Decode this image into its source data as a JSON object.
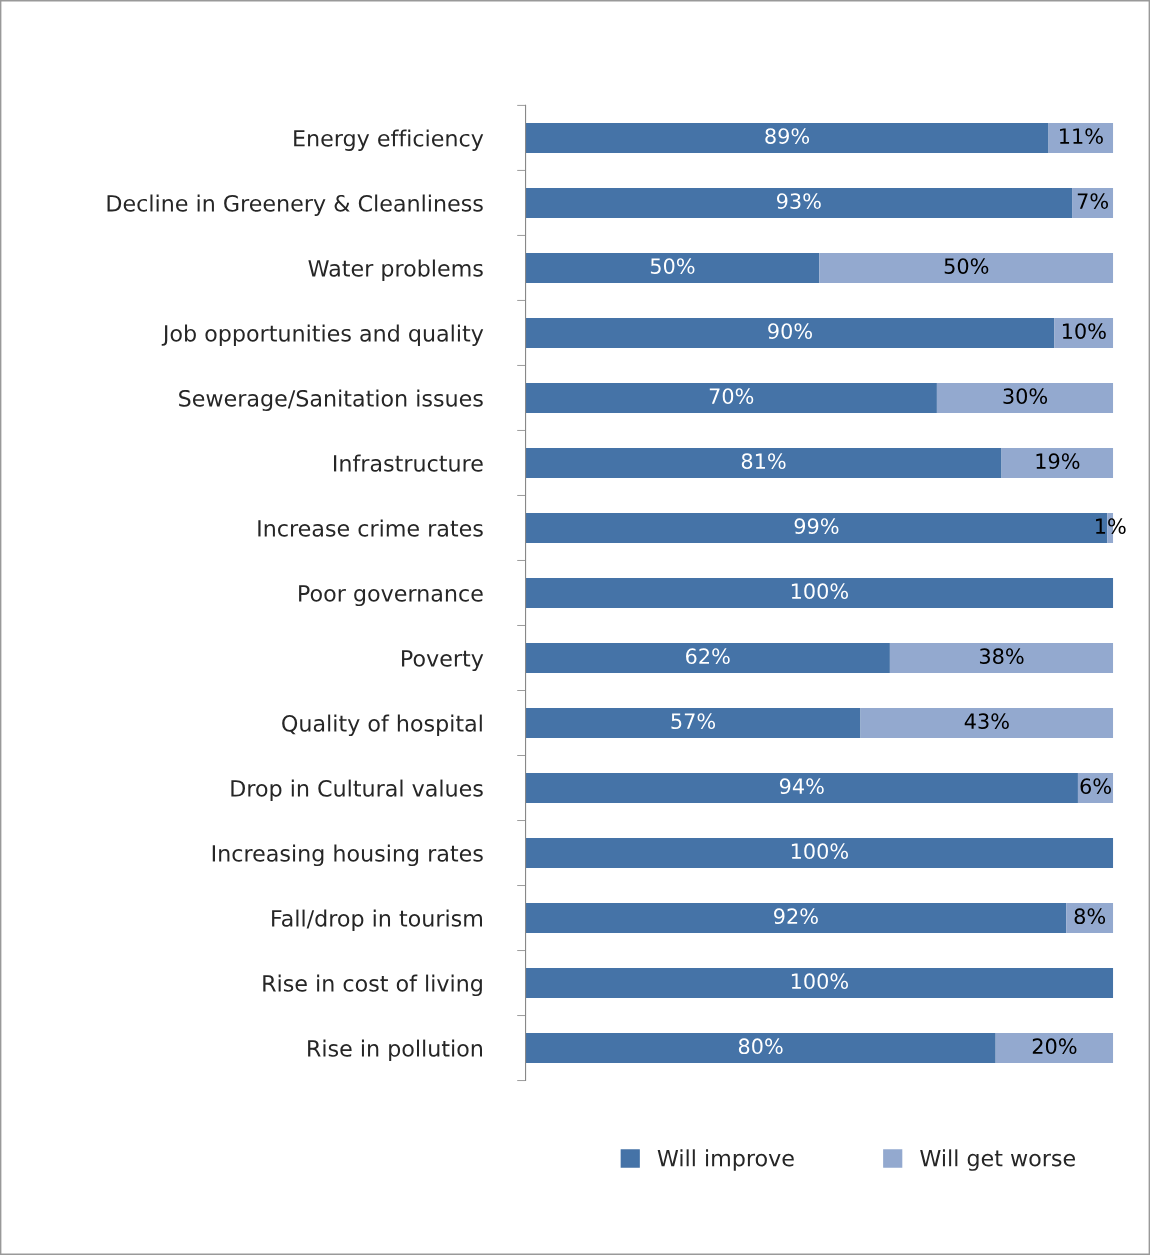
{
  "chart_data": {
    "type": "bar",
    "orientation": "horizontal",
    "stacked": true,
    "categories": [
      "Energy efficiency",
      "Decline in Greenery & Cleanliness",
      "Water problems",
      "Job opportunities and quality",
      "Sewerage/Sanitation issues",
      "Infrastructure",
      "Increase crime rates",
      "Poor governance",
      "Poverty",
      "Quality of hospital",
      "Drop in Cultural values",
      "Increasing housing rates",
      "Fall/drop in tourism",
      "Rise in cost of living",
      "Rise in pollution"
    ],
    "series": [
      {
        "name": "Will improve",
        "color": "#4573a7",
        "values": [
          89,
          93,
          50,
          90,
          70,
          81,
          99,
          100,
          62,
          57,
          94,
          100,
          92,
          100,
          80
        ],
        "value_labels": [
          "89%",
          "93%",
          "50%",
          "90%",
          "70%",
          "81%",
          "99%",
          "100%",
          "62%",
          "57%",
          "94%",
          "100%",
          "92%",
          "100%",
          "80%"
        ]
      },
      {
        "name": "Will get worse",
        "color": "#93a9cf",
        "values": [
          11,
          7,
          50,
          10,
          30,
          19,
          1,
          0,
          38,
          43,
          6,
          0,
          8,
          0,
          20
        ],
        "value_labels": [
          "11%",
          "7%",
          "50%",
          "10%",
          "30%",
          "19%",
          "1%",
          null,
          "38%",
          "43%",
          "6%",
          null,
          "8%",
          null,
          "20%"
        ]
      }
    ],
    "xlim": [
      0,
      100
    ],
    "tick_labels": "y",
    "grid": false,
    "legend": "bottom"
  }
}
